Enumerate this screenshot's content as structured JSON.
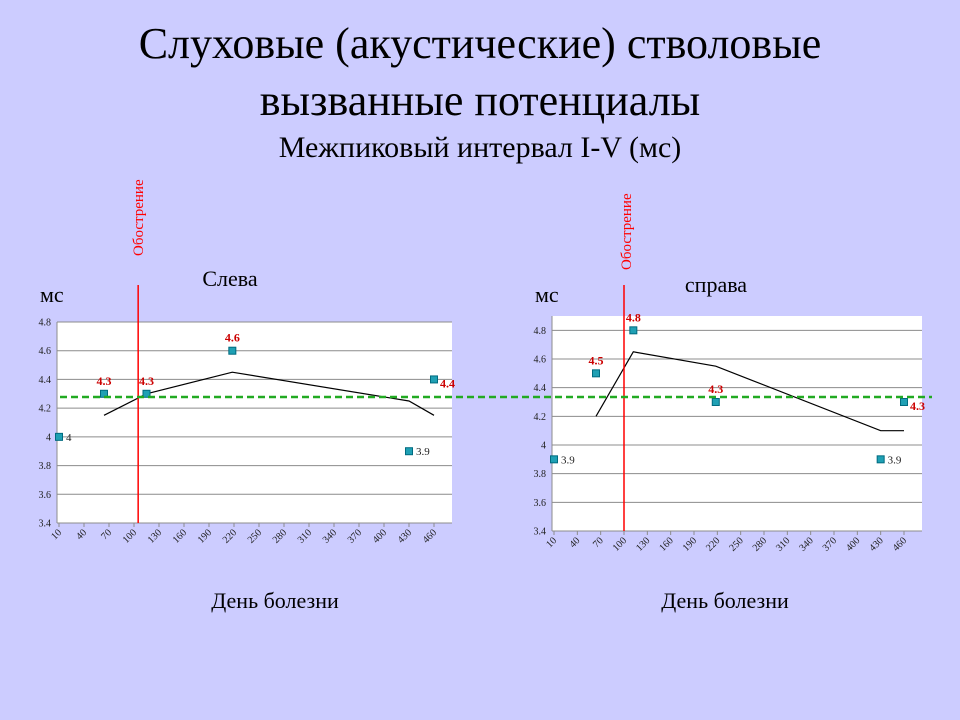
{
  "title": {
    "line1": "Слуховые (акустические)  стволовые",
    "line2": "вызванные потенциалы",
    "subtitle": "Межпиковый интервал I-V (мс)"
  },
  "colors": {
    "background": "#ccccff",
    "marker": "#1fa0b4",
    "marker_edge": "#006b80",
    "data_label": "#cc0000",
    "exacerbation_line": "#ff0000",
    "reference_line": "#22aa22",
    "trend_line": "#000000"
  },
  "reference_value": 4.28,
  "chart_data": [
    {
      "type": "scatter",
      "side_label": "Слева",
      "ylabel": "мс",
      "xlabel": "День болезни",
      "marker_label": "Обострение",
      "marker_x": 105,
      "x_ticks": [
        "10",
        "40",
        "70",
        "100",
        "130",
        "160",
        "190",
        "220",
        "250",
        "280",
        "310",
        "340",
        "370",
        "400",
        "430",
        "460"
      ],
      "y_ticks": [
        "3.4",
        "3.6",
        "3.8",
        "4",
        "4.2",
        "4.4",
        "4.6",
        "4.8"
      ],
      "ylim": [
        3.4,
        4.8
      ],
      "points": [
        {
          "x": 10,
          "y": 4.0,
          "label": "4",
          "label_style": "plain"
        },
        {
          "x": 64,
          "y": 4.3,
          "label": "4.3",
          "label_style": "red"
        },
        {
          "x": 115,
          "y": 4.3,
          "label": "4.3",
          "label_style": "red"
        },
        {
          "x": 218,
          "y": 4.6,
          "label": "4.6",
          "label_style": "red"
        },
        {
          "x": 430,
          "y": 3.9,
          "label": "3.9",
          "label_style": "plain"
        },
        {
          "x": 460,
          "y": 4.4,
          "label": "4.4",
          "label_style": "red"
        }
      ],
      "trend": [
        [
          64,
          4.15
        ],
        [
          115,
          4.3
        ],
        [
          218,
          4.45
        ],
        [
          430,
          4.25
        ],
        [
          460,
          4.15
        ]
      ]
    },
    {
      "type": "scatter",
      "side_label": "справа",
      "ylabel": "мс",
      "xlabel": "День болезни",
      "marker_label": "Обострение",
      "marker_x": 100,
      "x_ticks": [
        "10",
        "40",
        "70",
        "100",
        "130",
        "160",
        "190",
        "220",
        "250",
        "280",
        "310",
        "340",
        "370",
        "400",
        "430",
        "460"
      ],
      "y_ticks": [
        "3.4",
        "3.6",
        "3.8",
        "4",
        "4.2",
        "4.4",
        "4.6",
        "4.8"
      ],
      "ylim": [
        3.4,
        4.9
      ],
      "points": [
        {
          "x": 10,
          "y": 3.9,
          "label": "3.9",
          "label_style": "plain"
        },
        {
          "x": 64,
          "y": 4.5,
          "label": "4.5",
          "label_style": "red"
        },
        {
          "x": 112,
          "y": 4.8,
          "label": "4.8",
          "label_style": "red"
        },
        {
          "x": 218,
          "y": 4.3,
          "label": "4.3",
          "label_style": "red"
        },
        {
          "x": 430,
          "y": 3.9,
          "label": "3.9",
          "label_style": "plain"
        },
        {
          "x": 460,
          "y": 4.3,
          "label": "4.3",
          "label_style": "red"
        }
      ],
      "trend": [
        [
          64,
          4.2
        ],
        [
          112,
          4.65
        ],
        [
          218,
          4.55
        ],
        [
          430,
          4.1
        ],
        [
          460,
          4.1
        ]
      ]
    }
  ]
}
